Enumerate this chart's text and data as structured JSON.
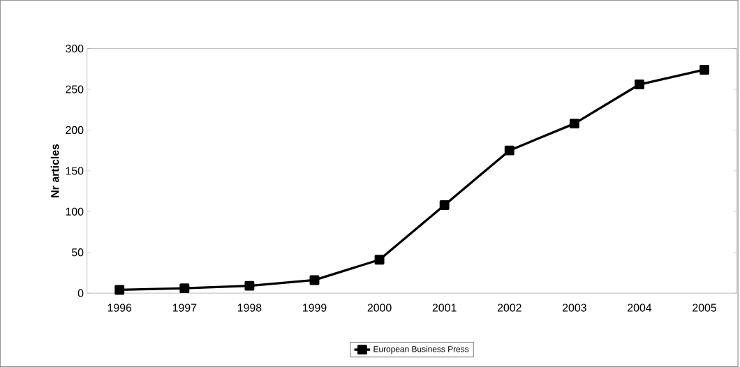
{
  "chart_data": {
    "type": "line",
    "ylabel": "Nr articles",
    "categories": [
      "1996",
      "1997",
      "1998",
      "1999",
      "2000",
      "2001",
      "2002",
      "2003",
      "2004",
      "2005"
    ],
    "series": [
      {
        "name": "European Business Press",
        "color": "#000000",
        "values": [
          4,
          6,
          9,
          16,
          41,
          108,
          175,
          208,
          256,
          274
        ]
      }
    ],
    "ylim": [
      0,
      300
    ],
    "yticks": [
      0,
      50,
      100,
      150,
      200,
      250,
      300
    ],
    "marker": "square",
    "line_style": "solid",
    "legend": "bottom"
  }
}
